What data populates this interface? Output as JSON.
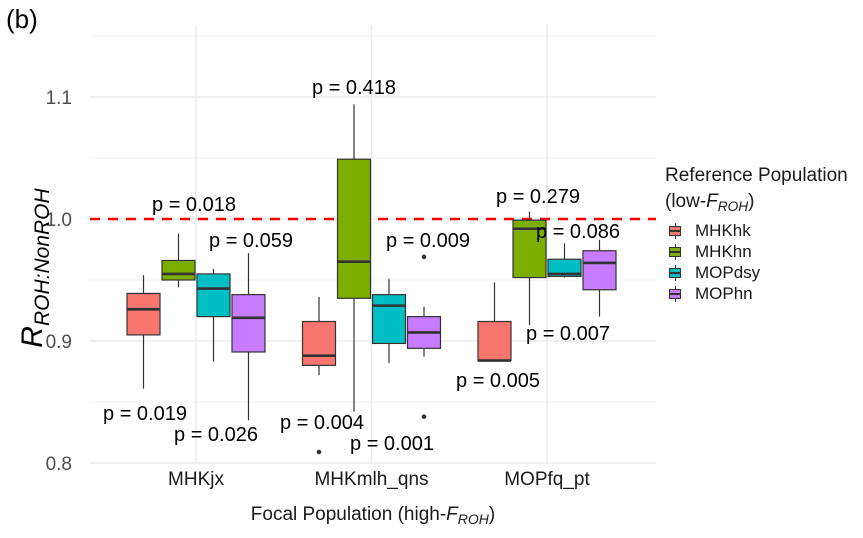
{
  "panel_label": "(b)",
  "chart_data": {
    "type": "boxplot",
    "title": "",
    "xlabel_prefix": "Focal Population (high-",
    "xlabel_var": "F",
    "xlabel_sub": "ROH",
    "xlabel_suffix": ")",
    "ylabel_var": "R",
    "ylabel_sub": "ROH:NonROH",
    "ylim": [
      0.78,
      1.165
    ],
    "yticks": [
      0.8,
      0.9,
      1.0,
      1.1
    ],
    "ytick_labels": [
      "0.8",
      "0.9",
      "1.0",
      "1.1"
    ],
    "grid": true,
    "reference_line": {
      "y": 1.0,
      "color": "#ff0000",
      "style": "dashed"
    },
    "categories": [
      "MHKjx",
      "MHKmlh_qns",
      "MOPfq_pt"
    ],
    "legend": {
      "title_line1": "Reference Population",
      "title_line2_prefix": "(low-",
      "title_line2_var": "F",
      "title_line2_sub": "ROH",
      "title_line2_suffix": ")",
      "placement": "right"
    },
    "series": [
      {
        "name": "MHKhk",
        "color": "#f8766d",
        "boxes": [
          {
            "whisker_high": 0.954,
            "q3": 0.939,
            "median": 0.926,
            "q1": 0.905,
            "whisker_low": 0.861,
            "outliers": [],
            "p_label": "p = 0.019"
          },
          {
            "whisker_high": 0.936,
            "q3": 0.916,
            "median": 0.888,
            "q1": 0.88,
            "whisker_low": 0.872,
            "outliers": [
              0.809
            ],
            "p_label": "p = 0.004"
          },
          {
            "whisker_high": 0.948,
            "q3": 0.916,
            "median": 0.884,
            "q1": 0.884,
            "whisker_low": 0.884,
            "outliers": [],
            "p_label": "p = 0.005"
          }
        ]
      },
      {
        "name": "MHKhn",
        "color": "#7cae00",
        "boxes": [
          {
            "whisker_high": 0.988,
            "q3": 0.966,
            "median": 0.955,
            "q1": 0.95,
            "whisker_low": 0.944,
            "outliers": [],
            "p_label": "p = 0.018"
          },
          {
            "whisker_high": 1.094,
            "q3": 1.049,
            "median": 0.965,
            "q1": 0.935,
            "whisker_low": 0.842,
            "outliers": [],
            "p_label": "p = 0.418"
          },
          {
            "whisker_high": 1.006,
            "q3": 0.999,
            "median": 0.992,
            "q1": 0.952,
            "whisker_low": 0.913,
            "outliers": [],
            "p_label": "p = 0.279"
          }
        ]
      },
      {
        "name": "MOPdsy",
        "color": "#00bfc4",
        "boxes": [
          {
            "whisker_high": 0.959,
            "q3": 0.955,
            "median": 0.943,
            "q1": 0.92,
            "whisker_low": 0.883,
            "outliers": [],
            "p_label": "p = 0.026"
          },
          {
            "whisker_high": 0.951,
            "q3": 0.938,
            "median": 0.929,
            "q1": 0.898,
            "whisker_low": 0.882,
            "outliers": [],
            "p_label": "p = 0.001"
          },
          {
            "whisker_high": 0.98,
            "q3": 0.967,
            "median": 0.955,
            "q1": 0.953,
            "whisker_low": 0.952,
            "outliers": [],
            "p_label": "p = 0.007"
          }
        ]
      },
      {
        "name": "MOPhn",
        "color": "#c77cff",
        "boxes": [
          {
            "whisker_high": 0.972,
            "q3": 0.938,
            "median": 0.919,
            "q1": 0.891,
            "whisker_low": 0.835,
            "outliers": [],
            "p_label": "p = 0.059"
          },
          {
            "whisker_high": 0.928,
            "q3": 0.92,
            "median": 0.907,
            "q1": 0.894,
            "whisker_low": 0.887,
            "outliers": [
              0.969,
              0.838
            ],
            "p_label": "p = 0.009"
          },
          {
            "whisker_high": 0.983,
            "q3": 0.974,
            "median": 0.964,
            "q1": 0.942,
            "whisker_low": 0.92,
            "outliers": [],
            "p_label": "p = 0.086"
          }
        ]
      }
    ]
  }
}
